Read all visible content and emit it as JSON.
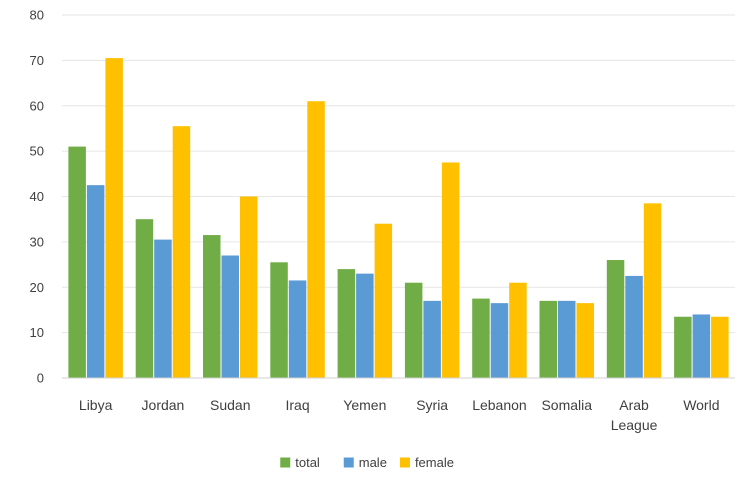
{
  "chart_data": {
    "type": "bar",
    "title": "",
    "xlabel": "",
    "ylabel": "",
    "ylim": [
      0,
      80
    ],
    "yticks": [
      0,
      10,
      20,
      30,
      40,
      50,
      60,
      70,
      80
    ],
    "grid": true,
    "legend_position": "bottom",
    "categories": [
      [
        "Libya"
      ],
      [
        "Jordan"
      ],
      [
        "Sudan"
      ],
      [
        "Iraq"
      ],
      [
        "Yemen"
      ],
      [
        "Syria"
      ],
      [
        "Lebanon"
      ],
      [
        "Somalia"
      ],
      [
        "Arab",
        "League"
      ],
      [
        "World"
      ]
    ],
    "series": [
      {
        "name": "total",
        "color": "#70ad47",
        "values": [
          51,
          35,
          31.5,
          25.5,
          24,
          21,
          17.5,
          17,
          26,
          13.5
        ]
      },
      {
        "name": "male",
        "color": "#5b9bd5",
        "values": [
          42.5,
          30.5,
          27,
          21.5,
          23,
          17,
          16.5,
          17,
          22.5,
          14
        ]
      },
      {
        "name": "female",
        "color": "#ffc000",
        "values": [
          70.5,
          55.5,
          40,
          61,
          34,
          47.5,
          21,
          16.5,
          38.5,
          13.5
        ]
      }
    ]
  }
}
